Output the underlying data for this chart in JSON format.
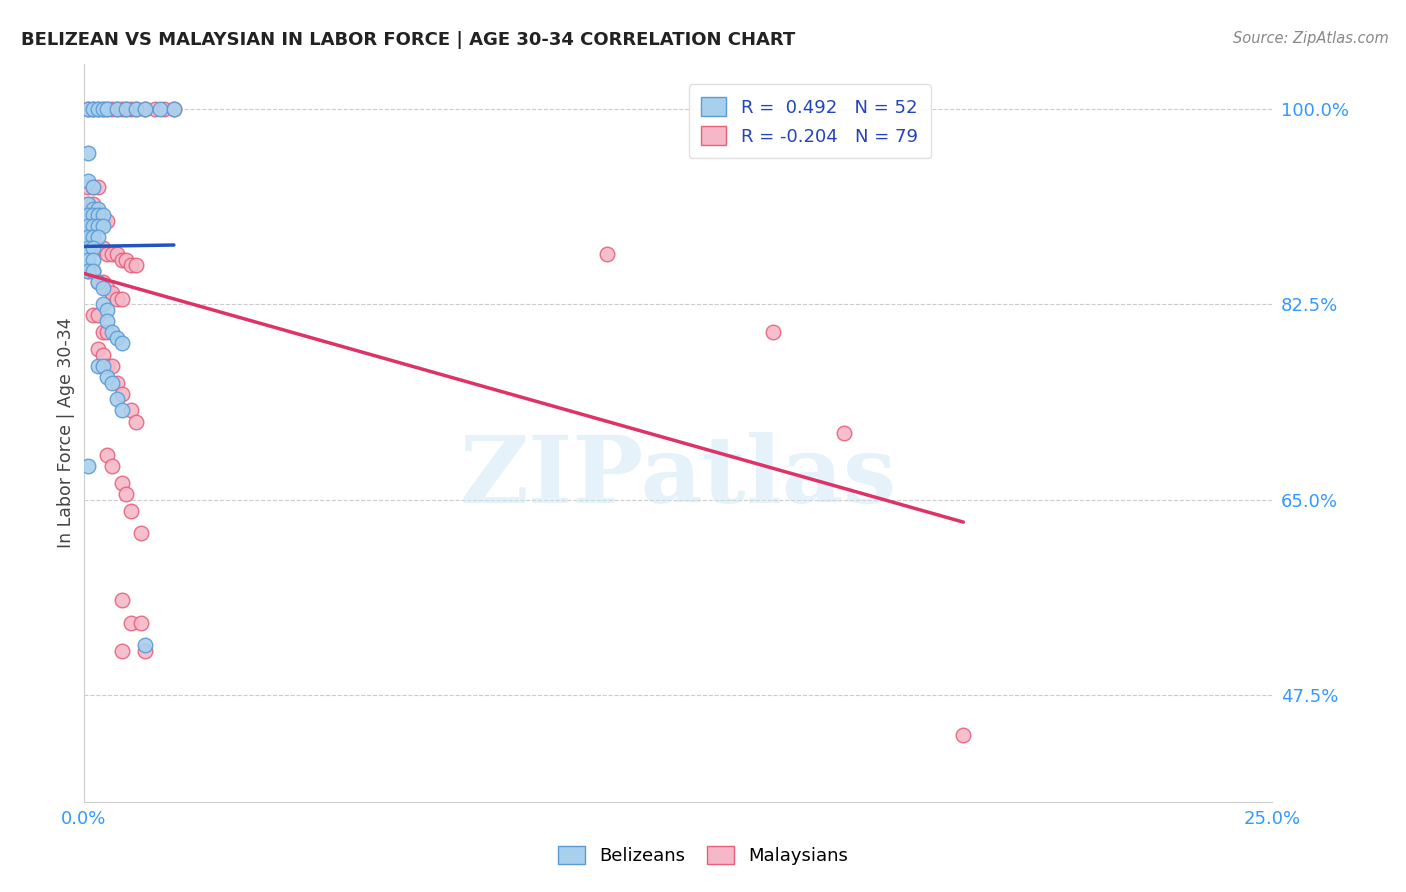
{
  "title": "BELIZEAN VS MALAYSIAN IN LABOR FORCE | AGE 30-34 CORRELATION CHART",
  "source": "Source: ZipAtlas.com",
  "ylabel": "In Labor Force | Age 30-34",
  "xlim": [
    0.0,
    0.25
  ],
  "ylim": [
    0.38,
    1.04
  ],
  "xtick_positions": [
    0.0,
    0.05,
    0.1,
    0.15,
    0.2,
    0.25
  ],
  "xtick_labels": [
    "0.0%",
    "",
    "",
    "",
    "",
    "25.0%"
  ],
  "ytick_positions_right": [
    1.0,
    0.825,
    0.65,
    0.475
  ],
  "ytick_labels_right": [
    "100.0%",
    "82.5%",
    "65.0%",
    "47.5%"
  ],
  "belizean_fill_color": "#a8d0ed",
  "belizean_edge_color": "#5b9bd5",
  "malaysian_fill_color": "#f4b8c8",
  "malaysian_edge_color": "#e8607a",
  "belizean_line_color": "#2255bb",
  "malaysian_line_color": "#dd3366",
  "legend_label_1": "R =  0.492   N = 52",
  "legend_label_2": "R = -0.204   N = 79",
  "watermark": "ZIPatlas",
  "belizean_points": [
    [
      0.001,
      1.0
    ],
    [
      0.002,
      1.0
    ],
    [
      0.003,
      1.0
    ],
    [
      0.004,
      1.0
    ],
    [
      0.005,
      1.0
    ],
    [
      0.007,
      1.0
    ],
    [
      0.009,
      1.0
    ],
    [
      0.011,
      1.0
    ],
    [
      0.013,
      1.0
    ],
    [
      0.016,
      1.0
    ],
    [
      0.019,
      1.0
    ],
    [
      0.001,
      0.96
    ],
    [
      0.001,
      0.935
    ],
    [
      0.002,
      0.93
    ],
    [
      0.001,
      0.915
    ],
    [
      0.002,
      0.91
    ],
    [
      0.003,
      0.91
    ],
    [
      0.001,
      0.905
    ],
    [
      0.002,
      0.905
    ],
    [
      0.003,
      0.905
    ],
    [
      0.004,
      0.905
    ],
    [
      0.001,
      0.895
    ],
    [
      0.002,
      0.895
    ],
    [
      0.003,
      0.895
    ],
    [
      0.004,
      0.895
    ],
    [
      0.001,
      0.885
    ],
    [
      0.002,
      0.885
    ],
    [
      0.003,
      0.885
    ],
    [
      0.001,
      0.875
    ],
    [
      0.002,
      0.875
    ],
    [
      0.001,
      0.865
    ],
    [
      0.002,
      0.865
    ],
    [
      0.001,
      0.855
    ],
    [
      0.002,
      0.855
    ],
    [
      0.003,
      0.845
    ],
    [
      0.004,
      0.84
    ],
    [
      0.004,
      0.825
    ],
    [
      0.005,
      0.82
    ],
    [
      0.005,
      0.81
    ],
    [
      0.006,
      0.8
    ],
    [
      0.007,
      0.795
    ],
    [
      0.008,
      0.79
    ],
    [
      0.003,
      0.77
    ],
    [
      0.004,
      0.77
    ],
    [
      0.005,
      0.76
    ],
    [
      0.006,
      0.755
    ],
    [
      0.007,
      0.74
    ],
    [
      0.008,
      0.73
    ],
    [
      0.013,
      0.52
    ],
    [
      0.001,
      0.68
    ]
  ],
  "malaysian_points": [
    [
      0.001,
      1.0
    ],
    [
      0.002,
      1.0
    ],
    [
      0.003,
      1.0
    ],
    [
      0.004,
      1.0
    ],
    [
      0.005,
      1.0
    ],
    [
      0.006,
      1.0
    ],
    [
      0.007,
      1.0
    ],
    [
      0.008,
      1.0
    ],
    [
      0.009,
      1.0
    ],
    [
      0.01,
      1.0
    ],
    [
      0.011,
      1.0
    ],
    [
      0.013,
      1.0
    ],
    [
      0.015,
      1.0
    ],
    [
      0.017,
      1.0
    ],
    [
      0.019,
      1.0
    ],
    [
      0.001,
      0.93
    ],
    [
      0.002,
      0.93
    ],
    [
      0.003,
      0.93
    ],
    [
      0.001,
      0.915
    ],
    [
      0.002,
      0.915
    ],
    [
      0.001,
      0.905
    ],
    [
      0.002,
      0.905
    ],
    [
      0.003,
      0.905
    ],
    [
      0.004,
      0.9
    ],
    [
      0.005,
      0.9
    ],
    [
      0.001,
      0.895
    ],
    [
      0.002,
      0.895
    ],
    [
      0.003,
      0.895
    ],
    [
      0.001,
      0.885
    ],
    [
      0.002,
      0.885
    ],
    [
      0.003,
      0.875
    ],
    [
      0.004,
      0.875
    ],
    [
      0.005,
      0.87
    ],
    [
      0.006,
      0.87
    ],
    [
      0.007,
      0.87
    ],
    [
      0.008,
      0.865
    ],
    [
      0.009,
      0.865
    ],
    [
      0.01,
      0.86
    ],
    [
      0.011,
      0.86
    ],
    [
      0.001,
      0.855
    ],
    [
      0.002,
      0.855
    ],
    [
      0.003,
      0.845
    ],
    [
      0.004,
      0.845
    ],
    [
      0.005,
      0.84
    ],
    [
      0.006,
      0.835
    ],
    [
      0.007,
      0.83
    ],
    [
      0.008,
      0.83
    ],
    [
      0.002,
      0.815
    ],
    [
      0.003,
      0.815
    ],
    [
      0.004,
      0.8
    ],
    [
      0.005,
      0.8
    ],
    [
      0.003,
      0.785
    ],
    [
      0.004,
      0.78
    ],
    [
      0.005,
      0.77
    ],
    [
      0.006,
      0.77
    ],
    [
      0.007,
      0.755
    ],
    [
      0.008,
      0.745
    ],
    [
      0.01,
      0.73
    ],
    [
      0.011,
      0.72
    ],
    [
      0.005,
      0.69
    ],
    [
      0.006,
      0.68
    ],
    [
      0.008,
      0.665
    ],
    [
      0.009,
      0.655
    ],
    [
      0.01,
      0.64
    ],
    [
      0.012,
      0.62
    ],
    [
      0.008,
      0.56
    ],
    [
      0.01,
      0.54
    ],
    [
      0.012,
      0.54
    ],
    [
      0.008,
      0.515
    ],
    [
      0.013,
      0.515
    ],
    [
      0.11,
      0.87
    ],
    [
      0.145,
      0.8
    ],
    [
      0.16,
      0.71
    ],
    [
      0.185,
      0.44
    ]
  ]
}
